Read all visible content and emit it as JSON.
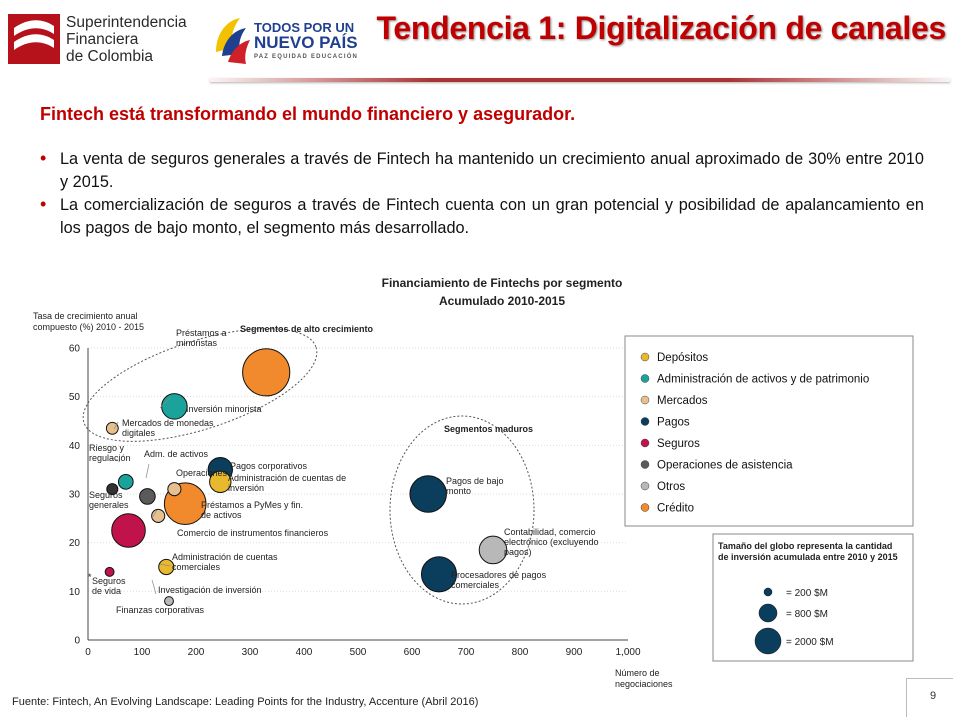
{
  "header": {
    "org_lines": [
      "Superintendencia",
      "Financiera",
      "de Colombia"
    ],
    "gov_lines": [
      "TODOS POR UN",
      "NUEVO PAÍS",
      "PAZ  EQUIDAD  EDUCACIÓN"
    ],
    "title": "Tendencia 1: Digitalización de canales"
  },
  "content": {
    "subtitle": "Fintech está transformando el mundo financiero y asegurador.",
    "bullets": [
      "La venta de seguros generales a través de Fintech ha mantenido un crecimiento anual aproximado de 30% entre 2010 y 2015.",
      "La comercialización de seguros a través de Fintech cuenta con un gran potencial y posibilidad de apalancamiento en los pagos de bajo monto, el segmento más desarrollado."
    ]
  },
  "chart_data": {
    "type": "scatter",
    "title": "Financiamiento de Fintechs por segmento",
    "subtitle": "Acumulado 2010-2015",
    "ylabel_lines": [
      "Tasa de crecimiento anual",
      "compuesto (%) 2010 - 2015"
    ],
    "xlabel_lines": [
      "Número de",
      "negociaciones"
    ],
    "xlim": [
      0,
      1000
    ],
    "ylim": [
      0,
      60
    ],
    "xticks": [
      "0",
      "100",
      "200",
      "300",
      "400",
      "500",
      "600",
      "700",
      "800",
      "900",
      "1,000"
    ],
    "yticks": [
      "0",
      "10",
      "20",
      "30",
      "40",
      "50",
      "60"
    ],
    "group_labels": [
      "Segmentos de alto crecimiento",
      "Segmentos maduros"
    ],
    "legend": [
      {
        "label": "Depósitos",
        "color": "#e8b92f"
      },
      {
        "label": "Administración de activos y de patrimonio",
        "color": "#1aa39a"
      },
      {
        "label": "Mercados",
        "color": "#e6c08f"
      },
      {
        "label": "Pagos",
        "color": "#0b3d5c"
      },
      {
        "label": "Seguros",
        "color": "#c0134b"
      },
      {
        "label": "Operaciones de asistencia",
        "color": "#5a5a5a"
      },
      {
        "label": "Otros",
        "color": "#b8b8b8"
      },
      {
        "label": "Crédito",
        "color": "#f08a2c"
      }
    ],
    "size_legend": {
      "title_lines": [
        "Tamaño del globo representa la cantidad",
        "de inversión acumulada entre 2010 y 2015"
      ],
      "items": [
        {
          "label": "= 200 $M",
          "value": 200
        },
        {
          "label": "= 800 $M",
          "value": 800
        },
        {
          "label": "= 2000 $M",
          "value": 2000
        }
      ],
      "color": "#0b3d5c"
    },
    "points": [
      {
        "label_lines": [
          "Préstamos a",
          "minoristas"
        ],
        "x": 330,
        "y": 55,
        "size": 2000,
        "color": "#f08a2c"
      },
      {
        "label_lines": [
          "Inversión minorista"
        ],
        "x": 160,
        "y": 48,
        "size": 450,
        "color": "#1aa39a"
      },
      {
        "label_lines": [
          "Mercados de monedas",
          "digitales"
        ],
        "x": 45,
        "y": 43.5,
        "size": 40,
        "color": "#e6c08f"
      },
      {
        "label_lines": [
          "Riesgo y",
          "regulación"
        ],
        "x": 45,
        "y": 31,
        "size": 30,
        "color": "#333333"
      },
      {
        "label_lines": [
          "Adm. de activos"
        ],
        "x": 70,
        "y": 32.5,
        "size": 90,
        "color": "#1aa39a"
      },
      {
        "label_lines": [
          "Operaciones"
        ],
        "x": 110,
        "y": 29.5,
        "size": 110,
        "color": "#5a5a5a"
      },
      {
        "label_lines": [
          "Pagos corporativos"
        ],
        "x": 245,
        "y": 35,
        "size": 400,
        "color": "#0b3d5c"
      },
      {
        "label_lines": [
          "Administración de cuentas de",
          "inversión"
        ],
        "x": 245,
        "y": 32.5,
        "size": 280,
        "color": "#e8b92f"
      },
      {
        "label_lines": [
          "Préstamos a PyMes y fin.",
          "de activos"
        ],
        "x": 180,
        "y": 28,
        "size": 1500,
        "color": "#f08a2c"
      },
      {
        "label_lines": [
          "Comercio de instrumentos financieros"
        ],
        "x": 160,
        "y": 31,
        "size": 60,
        "color": "#e6c08f"
      },
      {
        "label_lines": [
          "Seguros",
          "generales"
        ],
        "x": 75,
        "y": 22.5,
        "size": 900,
        "color": "#c0134b"
      },
      {
        "label_lines": [
          "Administración de cuentas",
          "comerciales"
        ],
        "x": 145,
        "y": 15,
        "size": 100,
        "color": "#e8b92f"
      },
      {
        "label_lines": [
          "Investigación de inversión"
        ],
        "x": 130,
        "y": 25.5,
        "size": 60,
        "color": "#e6c08f"
      },
      {
        "label_lines": [
          "Seguros",
          "de vida"
        ],
        "x": 40,
        "y": 14,
        "size": 10,
        "color": "#c0134b"
      },
      {
        "label_lines": [
          "Finanzas corporativas"
        ],
        "x": 150,
        "y": 8,
        "size": 10,
        "color": "#b8b8b8"
      },
      {
        "label_lines": [
          "Pagos de bajo",
          "monto"
        ],
        "x": 630,
        "y": 30,
        "size": 1100,
        "color": "#0b3d5c"
      },
      {
        "label_lines": [
          "Contabilidad, comercio",
          "electrónico (excluyendo",
          "pagos)"
        ],
        "x": 750,
        "y": 18.5,
        "size": 550,
        "color": "#b8b8b8"
      },
      {
        "label_lines": [
          "Procesadores de pagos",
          "comerciales"
        ],
        "x": 650,
        "y": 13.5,
        "size": 1000,
        "color": "#0b3d5c"
      }
    ]
  },
  "footer": {
    "source": "Fuente: Fintech, An Evolving Landscape: Leading Points for the Industry, Accenture (Abril 2016)",
    "page": "9"
  }
}
